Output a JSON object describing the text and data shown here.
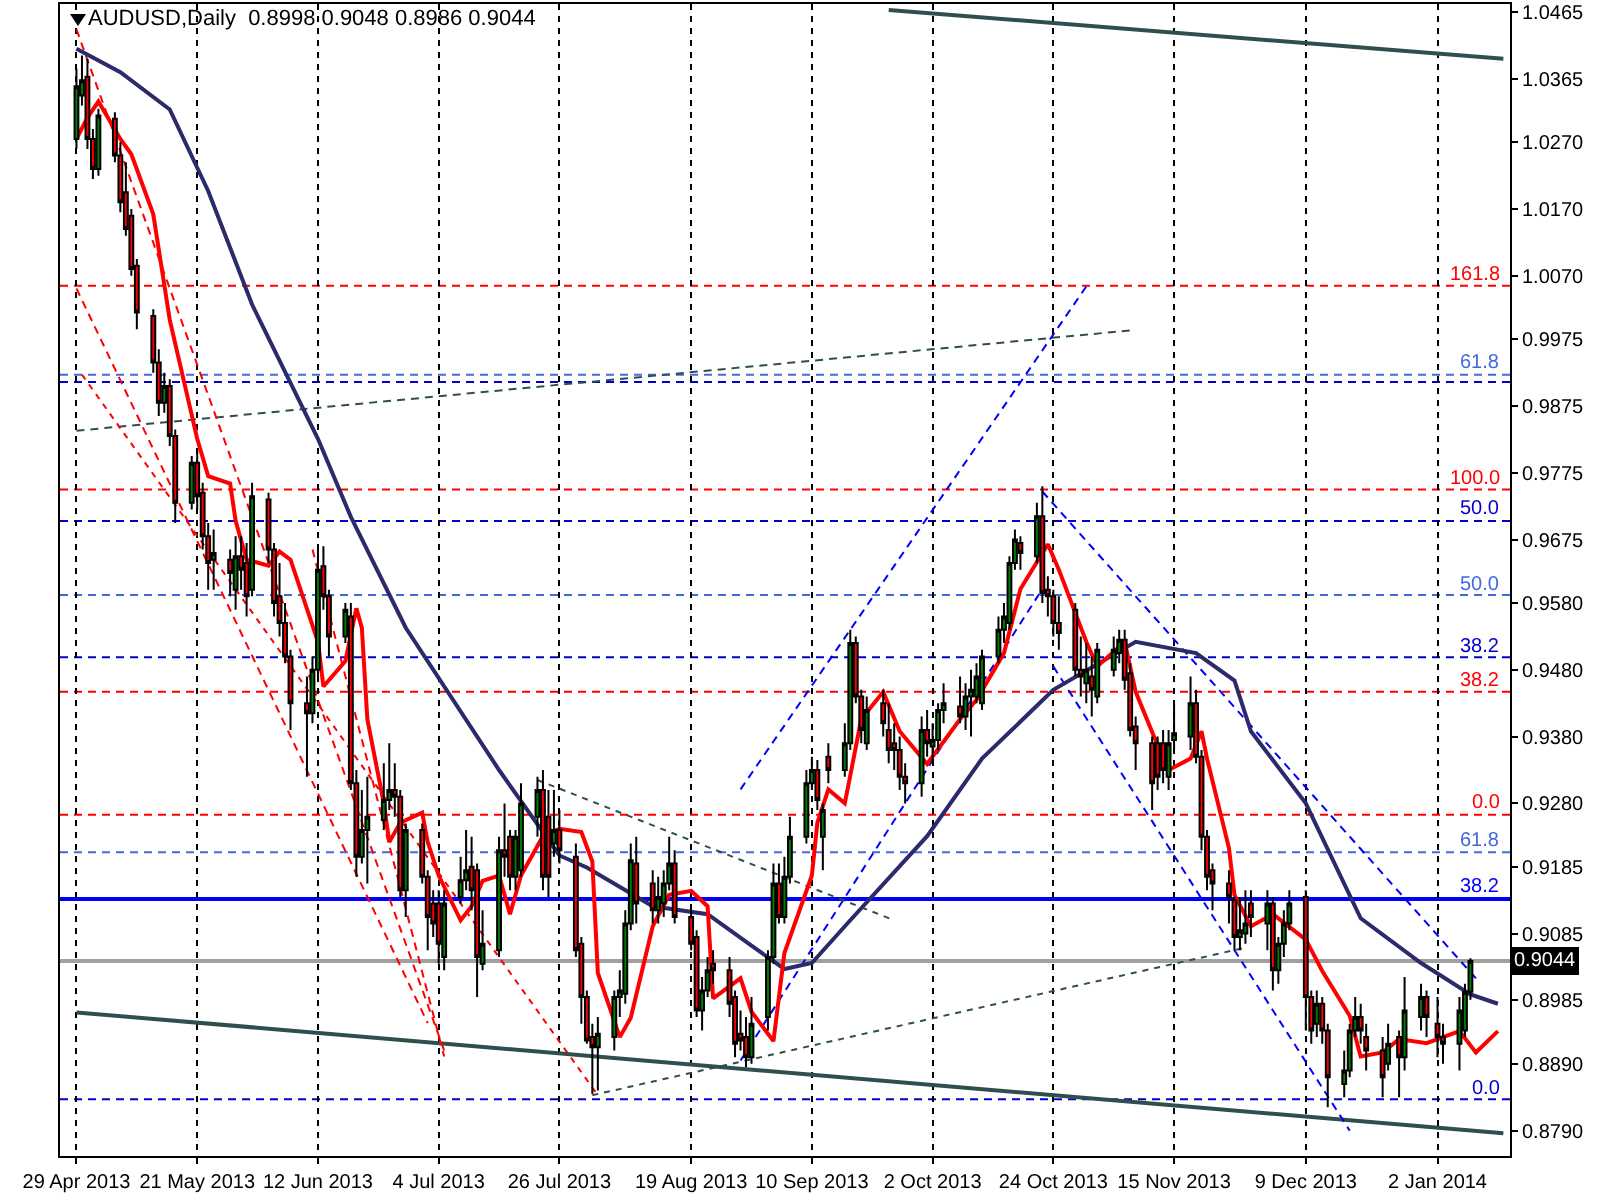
{
  "chart_data": {
    "type": "candlestick",
    "title": "AUDUSD,Daily  0.8998 0.9048 0.8986 0.9044",
    "xlim": [
      "2013-04-26",
      "2014-01-15T05:00"
    ],
    "xticks": [
      {
        "value": "2013-04-29",
        "label": "29 Apr 2013"
      },
      {
        "value": "2013-05-21",
        "label": "21 May 2013"
      },
      {
        "value": "2013-06-12",
        "label": "12 Jun 2013"
      },
      {
        "value": "2013-07-04",
        "label": "4 Jul 2013"
      },
      {
        "value": "2013-07-26",
        "label": "26 Jul 2013"
      },
      {
        "value": "2013-08-19",
        "label": "19 Aug 2013"
      },
      {
        "value": "2013-09-10",
        "label": "10 Sep 2013"
      },
      {
        "value": "2013-10-02",
        "label": "2 Oct 2013"
      },
      {
        "value": "2013-10-24",
        "label": "24 Oct 2013"
      },
      {
        "value": "2013-11-15",
        "label": "15 Nov 2013"
      },
      {
        "value": "2013-12-09",
        "label": "9 Dec 2013"
      },
      {
        "value": "2014-01-02",
        "label": "2 Jan 2014"
      }
    ],
    "ylim": [
      0.8752,
      1.0477
    ],
    "yticks": [
      1.0465,
      1.0365,
      {
        "value": 1.027,
        "label": "1.0270"
      },
      {
        "value": 1.017,
        "label": "1.0170"
      },
      {
        "value": 1.007,
        "label": "1.0070"
      },
      0.9975,
      0.9875,
      0.9775,
      0.9675,
      {
        "value": 0.958,
        "label": "0.9580"
      },
      {
        "value": 0.948,
        "label": "0.9480"
      },
      {
        "value": 0.938,
        "label": "0.9380"
      },
      {
        "value": 0.928,
        "label": "0.9280"
      },
      0.9185,
      0.9085,
      0.8985,
      {
        "value": 0.889,
        "label": "0.8890"
      },
      {
        "value": 0.879,
        "label": "0.8790"
      }
    ],
    "grid": "x",
    "ref_lines": [
      {
        "axis": "y",
        "value": 1.0055,
        "color": "#ff0000",
        "line_style": "dashed"
      },
      {
        "axis": "y",
        "value": 0.9922,
        "color": "#4169e1",
        "line_style": "dashed"
      },
      {
        "axis": "y",
        "value": 0.9911,
        "color": "#0000cd",
        "line_style": "dashed"
      },
      {
        "axis": "y",
        "value": 0.975,
        "color": "#ff0000",
        "line_style": "dashed"
      },
      {
        "axis": "y",
        "value": 0.9703,
        "color": "#0000cd",
        "line_style": "dashed"
      },
      {
        "axis": "y",
        "value": 0.9592,
        "color": "#4169e1",
        "line_style": "dashed"
      },
      {
        "axis": "y",
        "value": 0.9499,
        "color": "#0000cd",
        "line_style": "dashed"
      },
      {
        "axis": "y",
        "value": 0.9447,
        "color": "#ff0000",
        "line_style": "dashed"
      },
      {
        "axis": "y",
        "value": 0.9263,
        "color": "#ff0000",
        "line_style": "dashed"
      },
      {
        "axis": "y",
        "value": 0.9207,
        "color": "#4169e1",
        "line_style": "dashed"
      },
      {
        "axis": "y",
        "value": 0.9137,
        "color": "#0000ff",
        "line_style": "solid"
      },
      {
        "axis": "y",
        "value": 0.9044,
        "label": "0.9044",
        "color": "#a0a0a0",
        "line_style": "solid"
      },
      {
        "axis": "y",
        "value": 0.8837,
        "color": "#0000cd",
        "line_style": "dashed"
      }
    ],
    "annotations": [
      {
        "text": "161.8",
        "x": "2014-01-14",
        "y": 1.0055
      },
      {
        "text": "61.8",
        "x": "2014-01-14",
        "y": 0.9922
      },
      {
        "text": "100.0",
        "x": "2014-01-14",
        "y": 0.975
      },
      {
        "text": "50.0",
        "x": "2014-01-14",
        "y": 0.9703
      },
      {
        "text": "50.0",
        "x": "2014-01-14",
        "y": 0.9592
      },
      {
        "text": "38.2",
        "x": "2014-01-14",
        "y": 0.9499
      },
      {
        "text": "38.2",
        "x": "2014-01-14",
        "y": 0.9447
      },
      {
        "text": "0.0",
        "x": "2014-01-14",
        "y": 0.9263
      },
      {
        "text": "61.8",
        "x": "2014-01-14",
        "y": 0.9207
      },
      {
        "text": "38.2",
        "x": "2014-01-14",
        "y": 0.9137
      },
      {
        "text": "0.0",
        "x": "2014-01-14",
        "y": 0.8837
      }
    ],
    "series": [
      {
        "type": "line",
        "color": "#2f4f4f",
        "line_style": "solid",
        "x": [
          "2013-09-24",
          "2014-01-14"
        ],
        "values": [
          1.0468,
          1.0395
        ]
      },
      {
        "type": "line",
        "color": "#2f4f4f",
        "line_style": "solid",
        "x": [
          "2013-04-29",
          "2014-01-14"
        ],
        "values": [
          0.8967,
          0.8786
        ]
      },
      {
        "type": "line",
        "color": "#2f4f4f",
        "line_style": "dashed",
        "x": [
          "2013-04-29",
          "2013-11-08"
        ],
        "values": [
          0.9838,
          0.9989
        ]
      },
      {
        "type": "line",
        "color": "#ff0000",
        "line_style": "dashed",
        "x": [
          "2013-04-29",
          "2013-07-02"
        ],
        "values": [
          1.0051,
          0.8951
        ]
      },
      {
        "type": "line",
        "color": "#ff0000",
        "line_style": "dashed",
        "x": [
          "2013-04-29",
          "2013-07-05"
        ],
        "values": [
          1.0439,
          0.891
        ]
      },
      {
        "type": "line",
        "color": "#ff0000",
        "line_style": "dashed",
        "x": [
          "2013-06-11",
          "2013-07-05"
        ],
        "values": [
          0.966,
          0.8901
        ]
      },
      {
        "type": "line",
        "color": "#ff0000",
        "line_style": "dotted",
        "x": [
          "2013-04-30",
          "2013-08-02"
        ],
        "values": [
          0.9922,
          0.8843
        ]
      },
      {
        "type": "line",
        "color": "#0000ff",
        "line_style": "dashed",
        "x": [
          "2013-08-28",
          "2013-10-30"
        ],
        "values": [
          0.9301,
          1.0054
        ]
      },
      {
        "type": "line",
        "color": "#0000ff",
        "line_style": "dashed",
        "x": [
          "2013-08-28",
          "2013-10-22"
        ],
        "values": [
          0.8895,
          0.9601
        ]
      },
      {
        "type": "line",
        "color": "#0000ff",
        "line_style": "dashed",
        "x": [
          "2013-10-22",
          "2014-01-09"
        ],
        "values": [
          0.9747,
          0.9018
        ]
      },
      {
        "type": "line",
        "color": "#0000ff",
        "line_style": "dashed",
        "x": [
          "2013-10-24",
          "2013-12-17"
        ],
        "values": [
          0.9485,
          0.879
        ]
      },
      {
        "type": "line",
        "color": "#2f4f4f",
        "line_style": "dotted",
        "x": [
          "2013-08-01",
          "2013-11-28"
        ],
        "values": [
          0.8843,
          0.9064
        ]
      },
      {
        "type": "line",
        "color": "#2f4f4f",
        "line_style": "dotted",
        "x": [
          "2013-07-22",
          "2013-09-25"
        ],
        "values": [
          0.9315,
          0.9105
        ]
      },
      {
        "type": "line",
        "color": "#2b2b6b",
        "line_style": "solid",
        "x": [
          "2013-04-29",
          "2013-05-07",
          "2013-05-16",
          "2013-05-23",
          "2013-05-31",
          "2013-06-12",
          "2013-06-18",
          "2013-06-28",
          "2013-07-15",
          "2013-07-26",
          "2013-07-31",
          "2013-08-12",
          "2013-08-22",
          "2013-08-30",
          "2013-09-05",
          "2013-09-10",
          "2013-09-17",
          "2013-10-01",
          "2013-10-11",
          "2013-10-24",
          "2013-11-08",
          "2013-11-19",
          "2013-11-26",
          "2013-11-29",
          "2013-12-09",
          "2013-12-19",
          "2013-12-30",
          "2014-01-08",
          "2014-01-13"
        ],
        "values": [
          1.041,
          1.0375,
          1.0319,
          1.0197,
          1.0027,
          0.9826,
          0.9709,
          0.9543,
          0.933,
          0.9202,
          0.9184,
          0.9126,
          0.9114,
          0.9067,
          0.9032,
          0.9041,
          0.9105,
          0.9231,
          0.9347,
          0.945,
          0.9522,
          0.9505,
          0.9464,
          0.9388,
          0.928,
          0.9108,
          0.9041,
          0.8994,
          0.898
        ]
      },
      {
        "type": "line",
        "color": "#ff0000",
        "line_style": "solid",
        "x": [
          "2013-04-29",
          "2013-05-01",
          "2013-05-03",
          "2013-05-07",
          "2013-05-09",
          "2013-05-13",
          "2013-05-16",
          "2013-05-21",
          "2013-05-23",
          "2013-05-27",
          "2013-05-28",
          "2013-05-30",
          "2013-06-03",
          "2013-06-05",
          "2013-06-07",
          "2013-06-12",
          "2013-06-13",
          "2013-06-17",
          "2013-06-19",
          "2013-06-20",
          "2013-06-21",
          "2013-06-24",
          "2013-06-25",
          "2013-06-27",
          "2013-07-01",
          "2013-07-02",
          "2013-07-04",
          "2013-07-08",
          "2013-07-10",
          "2013-07-12",
          "2013-07-15",
          "2013-07-17",
          "2013-07-19",
          "2013-07-23",
          "2013-07-26",
          "2013-07-30",
          "2013-08-01",
          "2013-08-02",
          "2013-08-06",
          "2013-08-08",
          "2013-08-12",
          "2013-08-15",
          "2013-08-19",
          "2013-08-22",
          "2013-08-23",
          "2013-08-28",
          "2013-08-30",
          "2013-09-03",
          "2013-09-05",
          "2013-09-10",
          "2013-09-11",
          "2013-09-13",
          "2013-09-16",
          "2013-09-19",
          "2013-09-23",
          "2013-09-26",
          "2013-10-01",
          "2013-10-07",
          "2013-10-10",
          "2013-10-15",
          "2013-10-18",
          "2013-10-23",
          "2013-10-25",
          "2013-10-30",
          "2013-11-01",
          "2013-11-06",
          "2013-11-08",
          "2013-11-13",
          "2013-11-14",
          "2013-11-18",
          "2013-11-20",
          "2013-11-21",
          "2013-11-25",
          "2013-11-26",
          "2013-11-29",
          "2013-12-03",
          "2013-12-09",
          "2013-12-12",
          "2013-12-17",
          "2013-12-19",
          "2013-12-23",
          "2013-12-26",
          "2013-12-31",
          "2014-01-06",
          "2014-01-09",
          "2014-01-13"
        ],
        "values": [
          1.0275,
          1.0307,
          1.0331,
          1.0275,
          1.0252,
          1.0162,
          1.0004,
          0.9826,
          0.977,
          0.9759,
          0.9703,
          0.9645,
          0.9636,
          0.9657,
          0.9645,
          0.9522,
          0.9455,
          0.9493,
          0.9572,
          0.9543,
          0.9406,
          0.928,
          0.9222,
          0.9251,
          0.9266,
          0.9222,
          0.9172,
          0.9105,
          0.9126,
          0.9164,
          0.9172,
          0.9114,
          0.9172,
          0.9231,
          0.9242,
          0.9237,
          0.9193,
          0.9026,
          0.893,
          0.8959,
          0.9096,
          0.9143,
          0.9149,
          0.9126,
          0.8988,
          0.9018,
          0.8968,
          0.8924,
          0.9056,
          0.9172,
          0.9251,
          0.9301,
          0.928,
          0.9406,
          0.9447,
          0.9388,
          0.9339,
          0.9406,
          0.9435,
          0.9505,
          0.9601,
          0.9668,
          0.963,
          0.9522,
          0.9485,
          0.9522,
          0.9447,
          0.9347,
          0.933,
          0.9347,
          0.9388,
          0.9347,
          0.9213,
          0.9143,
          0.9096,
          0.9114,
          0.9076,
          0.9029,
          0.8962,
          0.8901,
          0.8907,
          0.8927,
          0.8921,
          0.8939,
          0.8907,
          0.8939
        ]
      },
      {
        "type": "candlestick",
        "color": "#008000",
        "x": [
          "2013-04-29",
          "2013-04-30",
          "2013-05-03",
          "2013-05-15",
          "2013-05-20",
          "2013-05-24",
          "2013-05-28",
          "2013-05-31",
          "2013-06-11",
          "2013-06-12",
          "2013-06-17",
          "2013-06-20",
          "2013-06-21",
          "2013-06-24",
          "2013-06-25",
          "2013-06-28",
          "2013-07-05",
          "2013-07-08",
          "2013-07-09",
          "2013-07-12",
          "2013-07-15",
          "2013-07-18",
          "2013-07-19",
          "2013-07-22",
          "2013-07-25",
          "2013-08-02",
          "2013-08-05",
          "2013-08-06",
          "2013-08-07",
          "2013-08-08",
          "2013-08-13",
          "2013-08-14",
          "2013-08-15",
          "2013-08-21",
          "2013-08-22",
          "2013-08-30",
          "2013-09-02",
          "2013-09-03",
          "2013-09-05",
          "2013-09-06",
          "2013-09-09",
          "2013-09-10",
          "2013-09-12",
          "2013-09-16",
          "2013-09-17",
          "2013-09-20",
          "2013-09-30",
          "2013-10-02",
          "2013-10-03",
          "2013-10-04",
          "2013-10-08",
          "2013-10-09",
          "2013-10-10",
          "2013-10-11",
          "2013-10-14",
          "2013-10-15",
          "2013-10-16",
          "2013-10-17",
          "2013-10-21",
          "2013-10-30",
          "2013-11-01",
          "2013-11-04",
          "2013-11-05",
          "2013-11-14",
          "2013-11-15",
          "2013-11-18",
          "2013-11-27",
          "2013-11-28",
          "2013-12-02",
          "2013-12-04",
          "2013-12-05",
          "2013-12-06",
          "2013-12-11",
          "2013-12-16",
          "2013-12-17",
          "2013-12-18",
          "2013-12-24",
          "2013-12-27",
          "2013-12-30",
          "2014-01-06",
          "2014-01-07",
          "2014-01-08"
        ],
        "ohlc": [
          [
            1.0275,
            1.038,
            1.026,
            1.0354
          ],
          [
            1.034,
            1.04,
            1.0325,
            1.0363
          ],
          [
            1.023,
            1.032,
            1.022,
            1.031
          ],
          [
            0.988,
            0.9925,
            0.9865,
            0.9905
          ],
          [
            0.973,
            0.98,
            0.972,
            0.979
          ],
          [
            0.9645,
            0.969,
            0.96,
            0.9655
          ],
          [
            0.96,
            0.968,
            0.957,
            0.965
          ],
          [
            0.96,
            0.976,
            0.959,
            0.974
          ],
          [
            0.9415,
            0.95,
            0.94,
            0.948
          ],
          [
            0.948,
            0.966,
            0.947,
            0.963
          ],
          [
            0.953,
            0.958,
            0.952,
            0.957
          ],
          [
            0.92,
            0.93,
            0.919,
            0.924
          ],
          [
            0.924,
            0.932,
            0.916,
            0.926
          ],
          [
            0.9255,
            0.934,
            0.924,
            0.9285
          ],
          [
            0.9285,
            0.937,
            0.927,
            0.93
          ],
          [
            0.915,
            0.925,
            0.911,
            0.924
          ],
          [
            0.905,
            0.915,
            0.903,
            0.913
          ],
          [
            0.914,
            0.92,
            0.913,
            0.9165
          ],
          [
            0.9165,
            0.924,
            0.915,
            0.918
          ],
          [
            0.904,
            0.912,
            0.903,
            0.907
          ],
          [
            0.906,
            0.923,
            0.905,
            0.921
          ],
          [
            0.917,
            0.924,
            0.915,
            0.923
          ],
          [
            0.918,
            0.931,
            0.917,
            0.928
          ],
          [
            0.926,
            0.932,
            0.923,
            0.93
          ],
          [
            0.922,
            0.93,
            0.92,
            0.924
          ],
          [
            0.8915,
            0.896,
            0.885,
            0.8935
          ],
          [
            0.893,
            0.9,
            0.891,
            0.899
          ],
          [
            0.899,
            0.903,
            0.896,
            0.9
          ],
          [
            0.8995,
            0.912,
            0.898,
            0.91
          ],
          [
            0.91,
            0.922,
            0.909,
            0.9195
          ],
          [
            0.912,
            0.917,
            0.91,
            0.914
          ],
          [
            0.913,
            0.918,
            0.911,
            0.916
          ],
          [
            0.916,
            0.923,
            0.915,
            0.919
          ],
          [
            0.897,
            0.902,
            0.894,
            0.9
          ],
          [
            0.9,
            0.905,
            0.899,
            0.903
          ],
          [
            0.89,
            0.899,
            0.889,
            0.895
          ],
          [
            0.896,
            0.906,
            0.894,
            0.905
          ],
          [
            0.905,
            0.919,
            0.904,
            0.916
          ],
          [
            0.911,
            0.92,
            0.91,
            0.917
          ],
          [
            0.917,
            0.926,
            0.916,
            0.923
          ],
          [
            0.923,
            0.933,
            0.922,
            0.931
          ],
          [
            0.931,
            0.935,
            0.93,
            0.933
          ],
          [
            0.923,
            0.928,
            0.918,
            0.927
          ],
          [
            0.933,
            0.94,
            0.932,
            0.937
          ],
          [
            0.937,
            0.954,
            0.936,
            0.952
          ],
          [
            0.937,
            0.944,
            0.936,
            0.942
          ],
          [
            0.931,
            0.941,
            0.929,
            0.939
          ],
          [
            0.9365,
            0.94,
            0.934,
            0.9375
          ],
          [
            0.9375,
            0.943,
            0.936,
            0.942
          ],
          [
            0.942,
            0.946,
            0.94,
            0.943
          ],
          [
            0.941,
            0.946,
            0.939,
            0.944
          ],
          [
            0.944,
            0.948,
            0.938,
            0.945
          ],
          [
            0.944,
            0.949,
            0.943,
            0.947
          ],
          [
            0.943,
            0.951,
            0.942,
            0.95
          ],
          [
            0.95,
            0.956,
            0.949,
            0.954
          ],
          [
            0.954,
            0.958,
            0.952,
            0.956
          ],
          [
            0.955,
            0.965,
            0.954,
            0.964
          ],
          [
            0.964,
            0.969,
            0.963,
            0.9675
          ],
          [
            0.965,
            0.973,
            0.964,
            0.971
          ],
          [
            0.946,
            0.952,
            0.943,
            0.948
          ],
          [
            0.944,
            0.952,
            0.943,
            0.951
          ],
          [
            0.948,
            0.953,
            0.947,
            0.951
          ],
          [
            0.9505,
            0.954,
            0.949,
            0.9525
          ],
          [
            0.932,
            0.939,
            0.93,
            0.937
          ],
          [
            0.9375,
            0.943,
            0.936,
            0.9385
          ],
          [
            0.938,
            0.947,
            0.936,
            0.943
          ],
          [
            0.908,
            0.914,
            0.906,
            0.909
          ],
          [
            0.9085,
            0.915,
            0.907,
            0.91
          ],
          [
            0.91,
            0.915,
            0.906,
            0.913
          ],
          [
            0.903,
            0.908,
            0.901,
            0.907
          ],
          [
            0.907,
            0.912,
            0.905,
            0.91
          ],
          [
            0.91,
            0.915,
            0.909,
            0.913
          ],
          [
            0.895,
            0.9,
            0.893,
            0.898
          ],
          [
            0.886,
            0.891,
            0.884,
            0.888
          ],
          [
            0.888,
            0.895,
            0.887,
            0.894
          ],
          [
            0.894,
            0.899,
            0.893,
            0.896
          ],
          [
            0.889,
            0.895,
            0.888,
            0.892
          ],
          [
            0.89,
            0.902,
            0.888,
            0.897
          ],
          [
            0.896,
            0.901,
            0.894,
            0.899
          ],
          [
            0.892,
            0.899,
            0.888,
            0.897
          ],
          [
            0.894,
            0.901,
            0.893,
            0.8998
          ],
          [
            0.8998,
            0.9048,
            0.8986,
            0.9044
          ]
        ]
      },
      {
        "type": "candlestick",
        "color": "#ff0000",
        "x": [
          "2013-05-01",
          "2013-05-02",
          "2013-05-06",
          "2013-05-07",
          "2013-05-08",
          "2013-05-09",
          "2013-05-10",
          "2013-05-13",
          "2013-05-14",
          "2013-05-16",
          "2013-05-17",
          "2013-05-21",
          "2013-05-22",
          "2013-05-23",
          "2013-05-27",
          "2013-05-29",
          "2013-05-30",
          "2013-06-03",
          "2013-06-04",
          "2013-06-05",
          "2013-06-06",
          "2013-06-07",
          "2013-06-10",
          "2013-06-13",
          "2013-06-14",
          "2013-06-18",
          "2013-06-19",
          "2013-06-26",
          "2013-06-27",
          "2013-07-01",
          "2013-07-02",
          "2013-07-03",
          "2013-07-04",
          "2013-07-10",
          "2013-07-11",
          "2013-07-16",
          "2013-07-17",
          "2013-07-23",
          "2013-07-24",
          "2013-07-26",
          "2013-07-29",
          "2013-07-30",
          "2013-07-31",
          "2013-08-01",
          "2013-08-09",
          "2013-08-12",
          "2013-08-16",
          "2013-08-19",
          "2013-08-20",
          "2013-08-23",
          "2013-08-26",
          "2013-08-27",
          "2013-08-28",
          "2013-08-29",
          "2013-09-04",
          "2013-09-11",
          "2013-09-13",
          "2013-09-18",
          "2013-09-19",
          "2013-09-23",
          "2013-09-24",
          "2013-09-25",
          "2013-09-26",
          "2013-09-27",
          "2013-10-01",
          "2013-10-07",
          "2013-10-18",
          "2013-10-22",
          "2013-10-23",
          "2013-10-24",
          "2013-10-25",
          "2013-10-28",
          "2013-10-29",
          "2013-10-31",
          "2013-11-06",
          "2013-11-07",
          "2013-11-08",
          "2013-11-11",
          "2013-11-12",
          "2013-11-13",
          "2013-11-19",
          "2013-11-20",
          "2013-11-21",
          "2013-11-22",
          "2013-11-25",
          "2013-11-26",
          "2013-11-29",
          "2013-12-03",
          "2013-12-09",
          "2013-12-10",
          "2013-12-12",
          "2013-12-13",
          "2013-12-19",
          "2013-12-20",
          "2013-12-23",
          "2013-12-26",
          "2013-12-31",
          "2014-01-02",
          "2014-01-03"
        ],
        "ohlc": [
          [
            1.0368,
            1.0395,
            1.026,
            1.0275
          ],
          [
            1.0275,
            1.029,
            1.0215,
            1.023
          ],
          [
            1.0305,
            1.0315,
            1.024,
            1.025
          ],
          [
            1.025,
            1.027,
            1.0165,
            1.018
          ],
          [
            1.0195,
            1.024,
            1.013,
            1.014
          ],
          [
            1.016,
            1.017,
            1.007,
            1.008
          ],
          [
            1.0085,
            1.0095,
            0.999,
            1.0015
          ],
          [
            1.001,
            1.002,
            0.9925,
            0.994
          ],
          [
            0.994,
            0.996,
            0.986,
            0.988
          ],
          [
            0.9905,
            0.9915,
            0.9815,
            0.983
          ],
          [
            0.983,
            0.984,
            0.97,
            0.973
          ],
          [
            0.979,
            0.981,
            0.972,
            0.974
          ],
          [
            0.9745,
            0.976,
            0.966,
            0.968
          ],
          [
            0.968,
            0.97,
            0.96,
            0.964
          ],
          [
            0.9645,
            0.966,
            0.959,
            0.9625
          ],
          [
            0.965,
            0.968,
            0.96,
            0.963
          ],
          [
            0.964,
            0.967,
            0.956,
            0.959
          ],
          [
            0.9735,
            0.9745,
            0.964,
            0.966
          ],
          [
            0.966,
            0.967,
            0.956,
            0.958
          ],
          [
            0.959,
            0.964,
            0.953,
            0.955
          ],
          [
            0.955,
            0.958,
            0.949,
            0.95
          ],
          [
            0.95,
            0.951,
            0.939,
            0.943
          ],
          [
            0.943,
            0.947,
            0.932,
            0.9415
          ],
          [
            0.9635,
            0.9665,
            0.957,
            0.959
          ],
          [
            0.959,
            0.96,
            0.95,
            0.953
          ],
          [
            0.956,
            0.958,
            0.93,
            0.931
          ],
          [
            0.931,
            0.933,
            0.917,
            0.92
          ],
          [
            0.93,
            0.934,
            0.926,
            0.929
          ],
          [
            0.929,
            0.93,
            0.914,
            0.915
          ],
          [
            0.924,
            0.925,
            0.916,
            0.917
          ],
          [
            0.917,
            0.918,
            0.906,
            0.911
          ],
          [
            0.913,
            0.915,
            0.908,
            0.91
          ],
          [
            0.913,
            0.915,
            0.904,
            0.907
          ],
          [
            0.9185,
            0.923,
            0.912,
            0.915
          ],
          [
            0.918,
            0.919,
            0.899,
            0.905
          ],
          [
            0.921,
            0.928,
            0.917,
            0.92
          ],
          [
            0.923,
            0.924,
            0.915,
            0.917
          ],
          [
            0.93,
            0.933,
            0.915,
            0.917
          ],
          [
            0.926,
            0.93,
            0.914,
            0.917
          ],
          [
            0.924,
            0.927,
            0.919,
            0.921
          ],
          [
            0.92,
            0.922,
            0.905,
            0.906
          ],
          [
            0.907,
            0.908,
            0.895,
            0.899
          ],
          [
            0.899,
            0.9,
            0.892,
            0.8925
          ],
          [
            0.893,
            0.895,
            0.8845,
            0.8915
          ],
          [
            0.919,
            0.923,
            0.91,
            0.913
          ],
          [
            0.916,
            0.918,
            0.91,
            0.912
          ],
          [
            0.919,
            0.921,
            0.91,
            0.911
          ],
          [
            0.911,
            0.912,
            0.906,
            0.907
          ],
          [
            0.908,
            0.909,
            0.896,
            0.897
          ],
          [
            0.904,
            0.906,
            0.901,
            0.903
          ],
          [
            0.903,
            0.905,
            0.896,
            0.898
          ],
          [
            0.899,
            0.9,
            0.89,
            0.892
          ],
          [
            0.8935,
            0.897,
            0.891,
            0.8925
          ],
          [
            0.893,
            0.896,
            0.8885,
            0.89
          ],
          [
            0.916,
            0.919,
            0.91,
            0.911
          ],
          [
            0.933,
            0.9345,
            0.927,
            0.9285
          ],
          [
            0.935,
            0.937,
            0.931,
            0.933
          ],
          [
            0.952,
            0.953,
            0.943,
            0.944
          ],
          [
            0.944,
            0.945,
            0.937,
            0.939
          ],
          [
            0.943,
            0.945,
            0.938,
            0.94
          ],
          [
            0.939,
            0.943,
            0.934,
            0.936
          ],
          [
            0.937,
            0.94,
            0.933,
            0.936
          ],
          [
            0.936,
            0.938,
            0.93,
            0.932
          ],
          [
            0.932,
            0.934,
            0.928,
            0.931
          ],
          [
            0.939,
            0.942,
            0.935,
            0.937
          ],
          [
            0.9425,
            0.947,
            0.94,
            0.941
          ],
          [
            0.967,
            0.968,
            0.963,
            0.9655
          ],
          [
            0.971,
            0.9755,
            0.958,
            0.9595
          ],
          [
            0.96,
            0.962,
            0.956,
            0.959
          ],
          [
            0.959,
            0.96,
            0.953,
            0.955
          ],
          [
            0.955,
            0.959,
            0.951,
            0.9535
          ],
          [
            0.957,
            0.958,
            0.947,
            0.948
          ],
          [
            0.948,
            0.953,
            0.944,
            0.947
          ],
          [
            0.947,
            0.95,
            0.941,
            0.945
          ],
          [
            0.9525,
            0.954,
            0.945,
            0.9465
          ],
          [
            0.9475,
            0.949,
            0.938,
            0.939
          ],
          [
            0.9395,
            0.941,
            0.933,
            0.937
          ],
          [
            0.937,
            0.938,
            0.927,
            0.931
          ],
          [
            0.937,
            0.938,
            0.93,
            0.932
          ],
          [
            0.937,
            0.939,
            0.931,
            0.933
          ],
          [
            0.943,
            0.945,
            0.934,
            0.935
          ],
          [
            0.935,
            0.936,
            0.921,
            0.923
          ],
          [
            0.923,
            0.924,
            0.915,
            0.917
          ],
          [
            0.918,
            0.919,
            0.912,
            0.916
          ],
          [
            0.916,
            0.918,
            0.91,
            0.914
          ],
          [
            0.9135,
            0.914,
            0.906,
            0.908
          ],
          [
            0.913,
            0.915,
            0.908,
            0.911
          ],
          [
            0.913,
            0.914,
            0.9,
            0.903
          ],
          [
            0.914,
            0.915,
            0.894,
            0.899
          ],
          [
            0.899,
            0.9,
            0.892,
            0.894
          ],
          [
            0.898,
            0.899,
            0.892,
            0.894
          ],
          [
            0.894,
            0.895,
            0.8825,
            0.887
          ],
          [
            0.896,
            0.898,
            0.892,
            0.894
          ],
          [
            0.893,
            0.895,
            0.888,
            0.891
          ],
          [
            0.891,
            0.893,
            0.884,
            0.887
          ],
          [
            0.893,
            0.894,
            0.884,
            0.89
          ],
          [
            0.899,
            0.9,
            0.893,
            0.896
          ],
          [
            0.895,
            0.899,
            0.89,
            0.893
          ],
          [
            0.893,
            0.895,
            0.889,
            0.892
          ]
        ]
      }
    ]
  }
}
